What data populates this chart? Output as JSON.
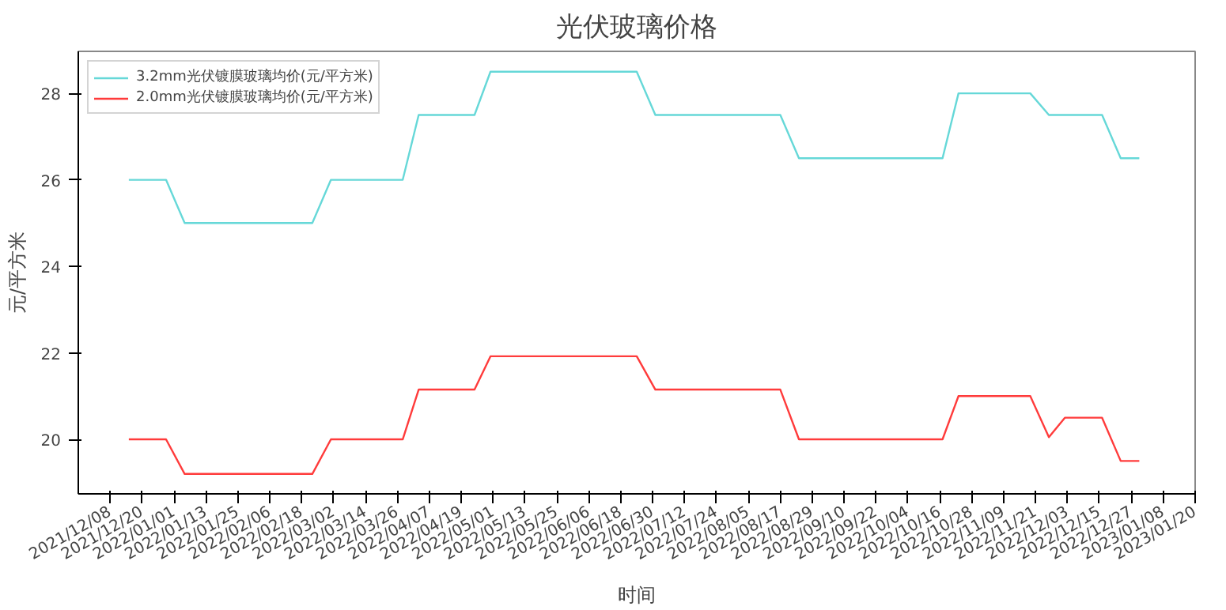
{
  "chart_data": {
    "type": "line",
    "title": "光伏玻璃价格",
    "xlabel": "时间",
    "ylabel": "元/平方米",
    "x": [
      "2021-12-15",
      "2021-12-29",
      "2022-01-05",
      "2022-02-22",
      "2022-03-01",
      "2022-03-28",
      "2022-04-03",
      "2022-04-24",
      "2022-04-30",
      "2022-06-24",
      "2022-07-01",
      "2022-08-17",
      "2022-08-24",
      "2022-10-17",
      "2022-10-23",
      "2022-11-19",
      "2022-11-26",
      "2022-12-02",
      "2022-12-16",
      "2022-12-23",
      "2022-12-30"
    ],
    "series": [
      {
        "name": "3.2mm光伏镀膜玻璃均价(元/平方米)",
        "color": "#66d8d8",
        "values": [
          26,
          26,
          25,
          25,
          26,
          26,
          27.5,
          27.5,
          28.5,
          28.5,
          27.5,
          27.5,
          26.5,
          26.5,
          28,
          28,
          27.5,
          27.5,
          27.5,
          26.5,
          26.5
        ]
      },
      {
        "name": "2.0mm光伏镀膜玻璃均价(元/平方米)",
        "color": "#ff3b3b",
        "values": [
          20,
          20,
          19.2,
          19.2,
          20,
          20,
          21.15,
          21.15,
          21.92,
          21.92,
          21.15,
          21.15,
          20,
          20,
          21,
          21,
          20.05,
          20.5,
          20.5,
          19.5,
          19.5
        ]
      }
    ],
    "xlim": [
      "2021-11-26",
      "2023-01-20"
    ],
    "xticks": [
      {
        "value": "2021-12-08",
        "label": "2021/12/08"
      },
      {
        "value": "2021-12-20",
        "label": "2021/12/20"
      },
      {
        "value": "2022-01-01",
        "label": "2022/01/01"
      },
      {
        "value": "2022-01-13",
        "label": "2022/01/13"
      },
      {
        "value": "2022-01-25",
        "label": "2022/01/25"
      },
      {
        "value": "2022-02-06",
        "label": "2022/02/06"
      },
      {
        "value": "2022-02-18",
        "label": "2022/02/18"
      },
      {
        "value": "2022-03-02",
        "label": "2022/03/02"
      },
      {
        "value": "2022-03-14",
        "label": "2022/03/14"
      },
      {
        "value": "2022-03-26",
        "label": "2022/03/26"
      },
      {
        "value": "2022-04-07",
        "label": "2022/04/07"
      },
      {
        "value": "2022-04-19",
        "label": "2022/04/19"
      },
      {
        "value": "2022-05-01",
        "label": "2022/05/01"
      },
      {
        "value": "2022-05-13",
        "label": "2022/05/13"
      },
      {
        "value": "2022-05-25",
        "label": "2022/05/25"
      },
      {
        "value": "2022-06-06",
        "label": "2022/06/06"
      },
      {
        "value": "2022-06-18",
        "label": "2022/06/18"
      },
      {
        "value": "2022-06-30",
        "label": "2022/06/30"
      },
      {
        "value": "2022-07-12",
        "label": "2022/07/12"
      },
      {
        "value": "2022-07-24",
        "label": "2022/07/24"
      },
      {
        "value": "2022-08-05",
        "label": "2022/08/05"
      },
      {
        "value": "2022-08-17",
        "label": "2022/08/17"
      },
      {
        "value": "2022-08-29",
        "label": "2022/08/29"
      },
      {
        "value": "2022-09-10",
        "label": "2022/09/10"
      },
      {
        "value": "2022-09-22",
        "label": "2022/09/22"
      },
      {
        "value": "2022-10-04",
        "label": "2022/10/04"
      },
      {
        "value": "2022-10-16",
        "label": "2022/10/16"
      },
      {
        "value": "2022-10-28",
        "label": "2022/10/28"
      },
      {
        "value": "2022-11-09",
        "label": "2022/11/09"
      },
      {
        "value": "2022-11-21",
        "label": "2022/11/21"
      },
      {
        "value": "2022-12-03",
        "label": "2022/12/03"
      },
      {
        "value": "2022-12-15",
        "label": "2022/12/15"
      },
      {
        "value": "2022-12-27",
        "label": "2022/12/27"
      },
      {
        "value": "2023-01-08",
        "label": "2023/01/08"
      },
      {
        "value": "2023-01-20",
        "label": "2023/01/20"
      }
    ],
    "ylim": [
      18.74,
      28.97
    ],
    "yticks": [
      20,
      22,
      24,
      26,
      28
    ],
    "grid": false,
    "legend": "top left",
    "marker": "none",
    "line_style": "solid"
  }
}
